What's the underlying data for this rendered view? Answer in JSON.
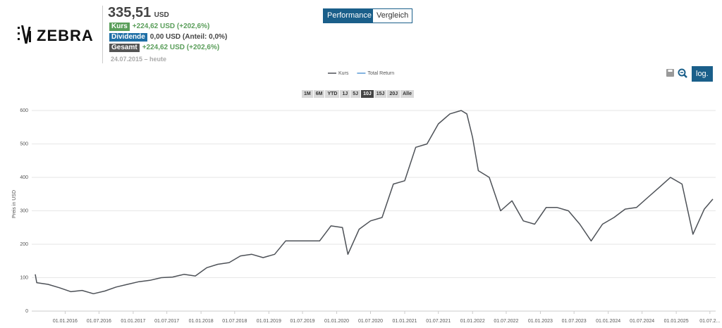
{
  "header": {
    "logo": "ZEBRA",
    "price": "335,51",
    "currency": "USD",
    "rows": [
      {
        "badge": "Kurs",
        "text": "+224,62 USD (+202,6%)"
      },
      {
        "badge": "Dividende",
        "text": "0,00 USD (Anteil: 0,0%)"
      },
      {
        "badge": "Gesamt",
        "text": "+224,62 USD (+202,6%)"
      }
    ],
    "period": "24.07.2015 – heute"
  },
  "tabs": [
    "Performance",
    "Vergleich"
  ],
  "range_buttons": [
    "1M",
    "6M",
    "YTD",
    "1J",
    "5J",
    "10J",
    "15J",
    "20J",
    "Alle"
  ],
  "log_button": "log.",
  "chart_data": {
    "type": "line",
    "ylabel": "Preis in USD",
    "legend": [
      {
        "name": "Kurs",
        "color": "#4d5157"
      },
      {
        "name": "Total Return",
        "color": "#5b9bd5"
      }
    ],
    "x": [
      "24.07.2015",
      "01.08.2015",
      "01.10.2015",
      "01.12.2015",
      "01.02.2016",
      "01.04.2016",
      "01.06.2016",
      "01.08.2016",
      "01.10.2016",
      "01.12.2016",
      "01.02.2017",
      "01.04.2017",
      "01.06.2017",
      "01.08.2017",
      "01.10.2017",
      "01.12.2017",
      "01.02.2018",
      "01.04.2018",
      "01.06.2018",
      "01.08.2018",
      "01.10.2018",
      "01.12.2018",
      "01.02.2019",
      "01.04.2019",
      "01.06.2019",
      "01.08.2019",
      "01.10.2019",
      "01.12.2019",
      "01.02.2020",
      "01.03.2020",
      "01.05.2020",
      "01.07.2020",
      "01.09.2020",
      "01.11.2020",
      "01.01.2021",
      "01.03.2021",
      "01.05.2021",
      "01.07.2021",
      "01.09.2021",
      "01.11.2021",
      "01.12.2021",
      "01.01.2022",
      "01.02.2022",
      "01.04.2022",
      "01.06.2022",
      "01.08.2022",
      "01.10.2022",
      "01.12.2022",
      "01.02.2023",
      "01.04.2023",
      "01.06.2023",
      "01.08.2023",
      "01.10.2023",
      "01.12.2023",
      "01.02.2024",
      "01.04.2024",
      "01.06.2024",
      "01.08.2024",
      "01.10.2024",
      "01.12.2024",
      "01.02.2025",
      "01.04.2025",
      "01.06.2025",
      "17.07.2025"
    ],
    "series": [
      {
        "name": "Kurs",
        "color": "#4d5157",
        "values": [
          110,
          85,
          80,
          70,
          58,
          62,
          52,
          60,
          72,
          80,
          88,
          92,
          100,
          102,
          110,
          105,
          130,
          140,
          145,
          165,
          170,
          160,
          170,
          210,
          210,
          210,
          210,
          255,
          250,
          170,
          245,
          270,
          280,
          380,
          390,
          490,
          500,
          560,
          590,
          600,
          590,
          520,
          420,
          400,
          300,
          330,
          270,
          260,
          310,
          310,
          300,
          260,
          210,
          260,
          280,
          305,
          310,
          340,
          370,
          400,
          380,
          230,
          305,
          335
        ]
      }
    ],
    "xlim": [
      "24.07.2015",
      "01.08.2025"
    ],
    "ylim": [
      0,
      600
    ],
    "yticks": [
      0,
      100,
      200,
      300,
      400,
      500,
      600
    ],
    "xticks": [
      "01.01.2016",
      "01.07.2016",
      "01.01.2017",
      "01.07.2017",
      "01.01.2018",
      "01.07.2018",
      "01.01.2019",
      "01.07.2019",
      "01.01.2020",
      "01.07.2020",
      "01.01.2021",
      "01.07.2021",
      "01.01.2022",
      "01.07.2022",
      "01.01.2023",
      "01.07.2023",
      "01.01.2024",
      "01.07.2024",
      "01.01.2025",
      {
        "value": "01.07.2025",
        "label": "01.07.2..."
      }
    ],
    "grid": true
  }
}
